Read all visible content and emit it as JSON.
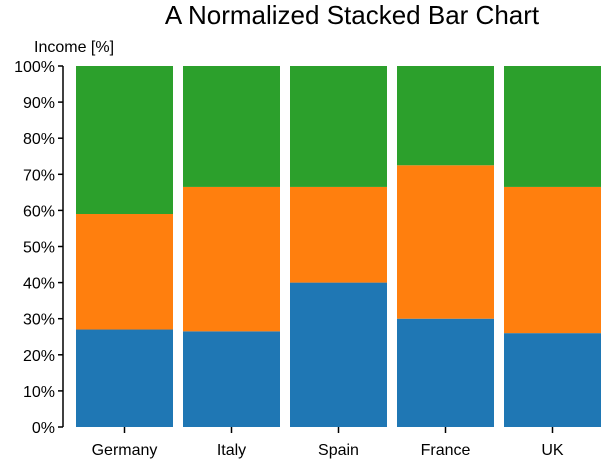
{
  "chart_data": {
    "type": "bar",
    "stacked": true,
    "normalized": true,
    "title": "A Normalized Stacked Bar Chart",
    "xlabel": "",
    "ylabel": "Income [%]",
    "ylim": [
      0,
      100
    ],
    "yticks": [
      "0%",
      "10%",
      "20%",
      "30%",
      "40%",
      "50%",
      "60%",
      "70%",
      "80%",
      "90%",
      "100%"
    ],
    "categories": [
      "Germany",
      "Italy",
      "Spain",
      "France",
      "UK"
    ],
    "series": [
      {
        "values": [
          27,
          26.5,
          40,
          30,
          26
        ],
        "color": "#1f77b4"
      },
      {
        "values": [
          32,
          40,
          26.5,
          42.5,
          40.5
        ],
        "color": "#ff7f0e"
      },
      {
        "values": [
          41,
          33.5,
          33.5,
          27.5,
          33.5
        ],
        "color": "#2ca02c"
      }
    ],
    "grid": false,
    "legend": "none"
  }
}
